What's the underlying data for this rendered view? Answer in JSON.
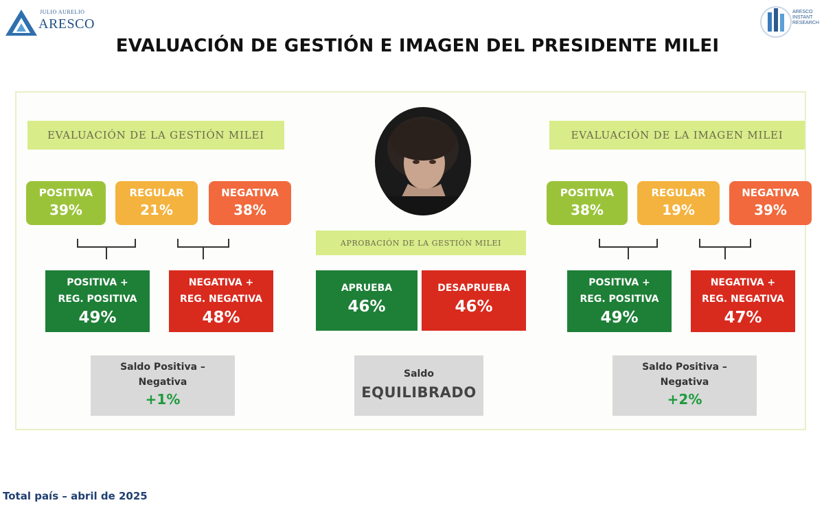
{
  "logos": {
    "left_small": "JULIO AURELIO",
    "left_big": "ARESCO",
    "right_lines": [
      "ARESCO",
      "INSTANT",
      "RESEARCH"
    ]
  },
  "title": "EVALUACIÓN DE GESTIÓN E IMAGEN DEL PRESIDENTE MILEI",
  "gestion": {
    "header": "EVALUACIÓN DE LA GESTIÓN MILEI",
    "positiva": {
      "label": "POSITIVA",
      "value": "39%"
    },
    "regular": {
      "label": "REGULAR",
      "value": "21%"
    },
    "negativa": {
      "label": "NEGATIVA",
      "value": "38%"
    },
    "pos_total": {
      "line1": "POSITIVA +",
      "line2": "REG. POSITIVA",
      "value": "49%"
    },
    "neg_total": {
      "line1": "NEGATIVA +",
      "line2": "REG. NEGATIVA",
      "value": "48%"
    },
    "saldo": {
      "line1": "Saldo Positiva –",
      "line2": "Negativa",
      "value": "+1%"
    }
  },
  "aprobacion": {
    "header": "APROBACIÓN DE LA GESTIÓN MILEI",
    "aprueba": {
      "label": "APRUEBA",
      "value": "46%"
    },
    "desaprueba": {
      "label": "DESAPRUEBA",
      "value": "46%"
    },
    "saldo": {
      "line1": "Saldo",
      "value": "EQUILIBRADO"
    }
  },
  "imagen": {
    "header": "EVALUACIÓN DE LA IMAGEN MILEI",
    "positiva": {
      "label": "POSITIVA",
      "value": "38%"
    },
    "regular": {
      "label": "REGULAR",
      "value": "19%"
    },
    "negativa": {
      "label": "NEGATIVA",
      "value": "39%"
    },
    "pos_total": {
      "line1": "POSITIVA +",
      "line2": "REG. POSITIVA",
      "value": "49%"
    },
    "neg_total": {
      "line1": "NEGATIVA +",
      "line2": "REG. NEGATIVA",
      "value": "47%"
    },
    "saldo": {
      "line1": "Saldo Positiva –",
      "line2": "Negativa",
      "value": "+2%"
    }
  },
  "footer": "Total país – abril de 2025",
  "colors": {
    "positiva_light": "#9bc33a",
    "regular_light": "#f4b33e",
    "negativa_light": "#f1693d",
    "positiva_dark": "#1e7f37",
    "negativa_dark": "#d92a1e",
    "header_green": "#d8ec8a",
    "saldo_gray": "#d9d9d9"
  }
}
